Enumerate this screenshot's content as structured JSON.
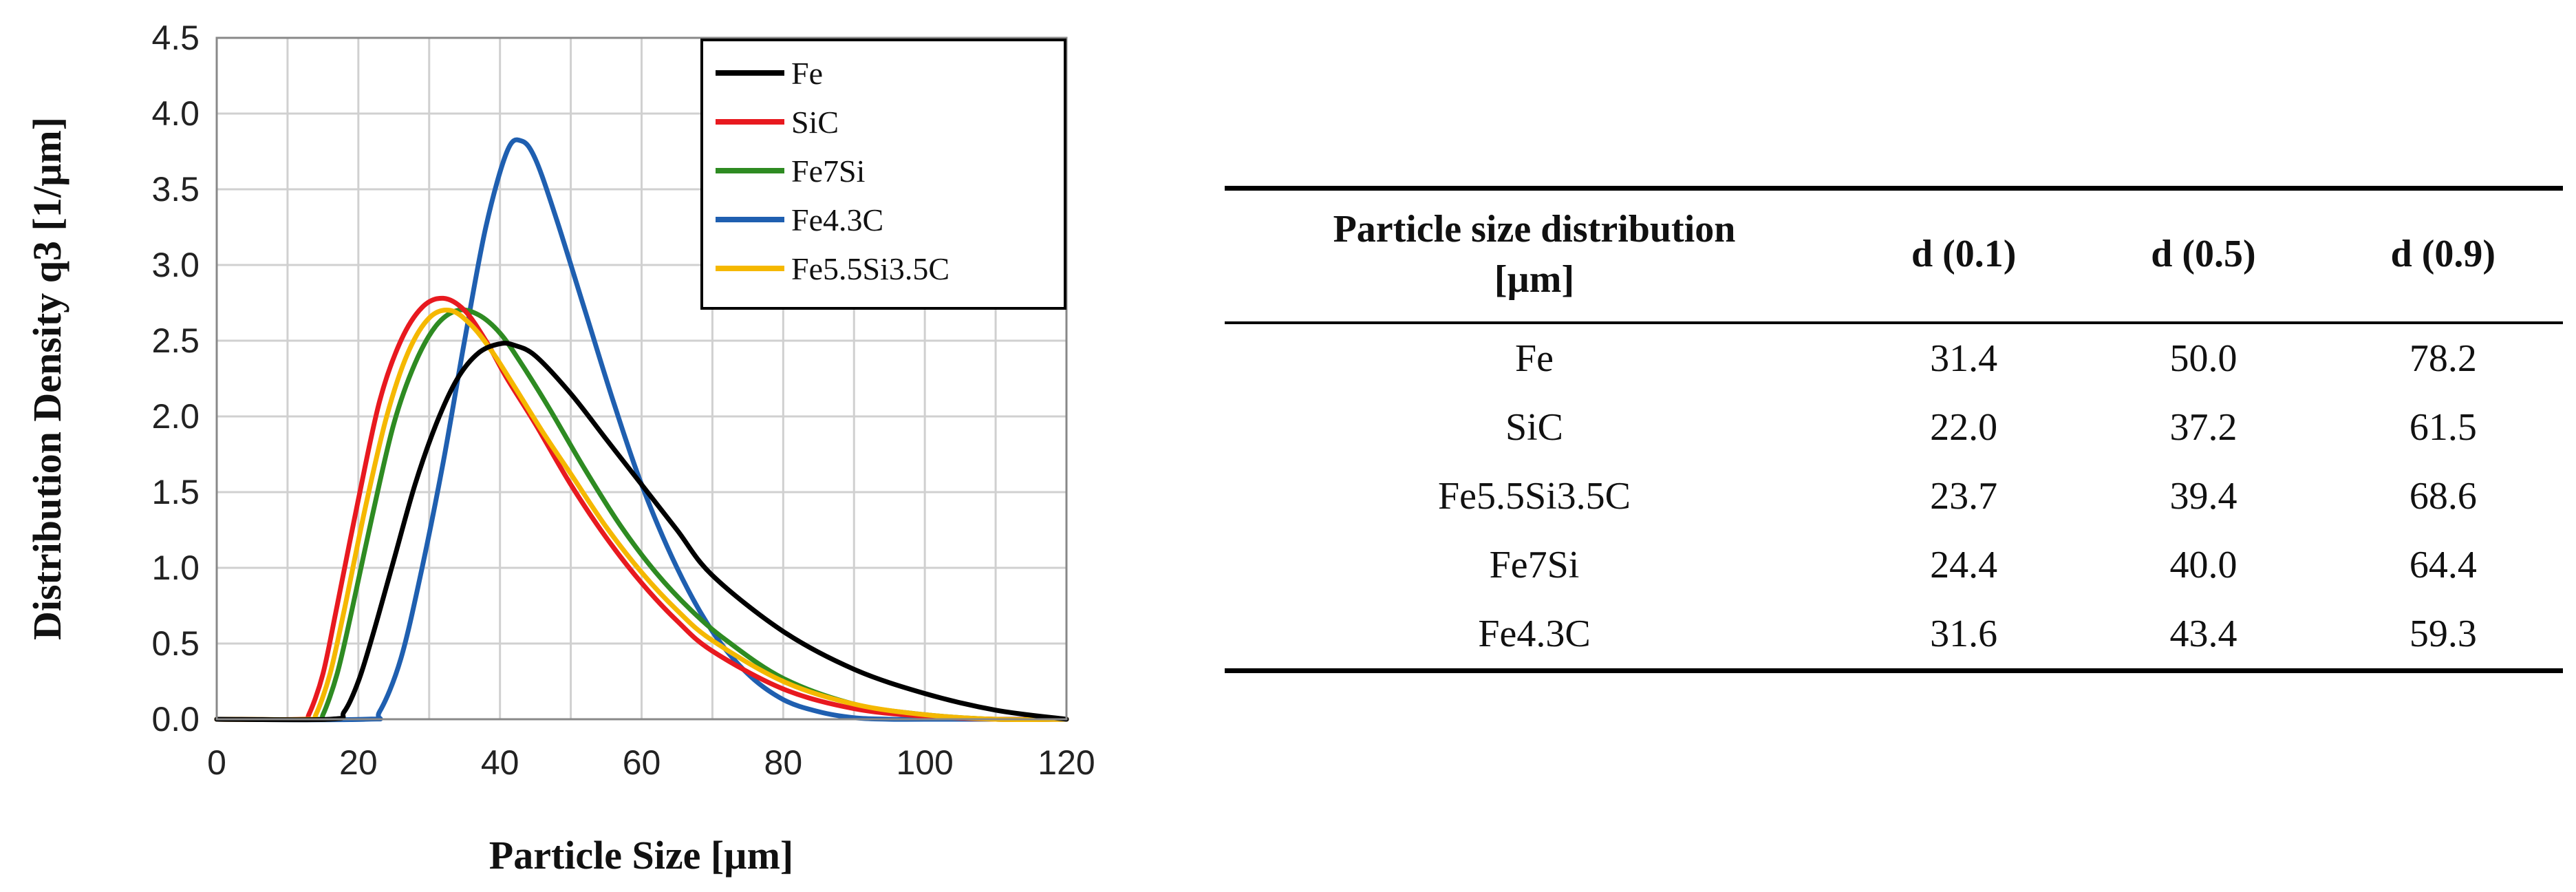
{
  "chart_data": {
    "type": "line",
    "title": "",
    "xlabel": "Particle Size [µm]",
    "ylabel": "Distribution Density q3 [1/µm]",
    "xlim": [
      0,
      120
    ],
    "ylim": [
      0,
      4.5
    ],
    "xticks": [
      "0",
      "20",
      "40",
      "60",
      "80",
      "100",
      "120"
    ],
    "yticks": [
      "0.0",
      "0.5",
      "1.0",
      "1.5",
      "2.0",
      "2.5",
      "3.0",
      "3.5",
      "4.0",
      "4.5"
    ],
    "grid": true,
    "legend_position": "top-right",
    "series": [
      {
        "name": "Fe",
        "color": "#000000",
        "x": [
          0,
          16,
          18,
          20,
          22,
          25,
          28,
          31,
          34,
          37,
          40,
          42,
          45,
          50,
          55,
          60,
          65,
          70,
          80,
          90,
          100,
          110,
          120
        ],
        "y": [
          0,
          0,
          0.05,
          0.25,
          0.55,
          1.05,
          1.55,
          1.95,
          2.25,
          2.42,
          2.48,
          2.47,
          2.4,
          2.15,
          1.85,
          1.55,
          1.25,
          0.95,
          0.58,
          0.33,
          0.17,
          0.06,
          0.0
        ]
      },
      {
        "name": "SiC",
        "color": "#e8191f",
        "x": [
          0,
          12,
          13,
          15,
          17,
          20,
          23,
          26,
          29,
          32,
          35,
          38,
          41,
          45,
          50,
          55,
          60,
          65,
          70,
          80,
          90,
          100,
          110,
          120
        ],
        "y": [
          0,
          0,
          0.03,
          0.3,
          0.75,
          1.45,
          2.1,
          2.5,
          2.72,
          2.78,
          2.7,
          2.5,
          2.25,
          1.95,
          1.55,
          1.2,
          0.9,
          0.65,
          0.45,
          0.2,
          0.07,
          0.02,
          0.0,
          0.0
        ]
      },
      {
        "name": "Fe7Si",
        "color": "#2e8b22",
        "x": [
          0,
          14,
          15,
          17,
          19,
          22,
          25,
          28,
          31,
          34,
          37,
          40,
          43,
          47,
          52,
          57,
          62,
          67,
          72,
          80,
          90,
          100,
          110,
          120
        ],
        "y": [
          0,
          0,
          0.03,
          0.3,
          0.7,
          1.35,
          1.95,
          2.35,
          2.6,
          2.7,
          2.67,
          2.55,
          2.35,
          2.05,
          1.65,
          1.28,
          0.97,
          0.72,
          0.52,
          0.27,
          0.1,
          0.03,
          0.0,
          0.0
        ]
      },
      {
        "name": "Fe4.3C",
        "color": "#1f5fb0",
        "x": [
          0,
          21,
          23,
          26,
          29,
          32,
          35,
          38,
          41,
          43,
          45,
          48,
          52,
          56,
          60,
          65,
          70,
          75,
          80,
          85,
          90,
          95,
          100,
          120
        ],
        "y": [
          0,
          0,
          0.05,
          0.4,
          1.0,
          1.7,
          2.5,
          3.25,
          3.75,
          3.82,
          3.7,
          3.3,
          2.7,
          2.1,
          1.55,
          1.0,
          0.58,
          0.3,
          0.13,
          0.05,
          0.01,
          0.0,
          0.0,
          0.0
        ]
      },
      {
        "name": "Fe5.5Si3.5C",
        "color": "#f5b800",
        "x": [
          0,
          13,
          14,
          16,
          18,
          21,
          24,
          27,
          30,
          33,
          36,
          39,
          42,
          46,
          50,
          55,
          60,
          65,
          70,
          80,
          90,
          100,
          110,
          120
        ],
        "y": [
          0,
          0,
          0.03,
          0.3,
          0.72,
          1.4,
          2.0,
          2.42,
          2.65,
          2.7,
          2.6,
          2.42,
          2.2,
          1.9,
          1.62,
          1.27,
          0.97,
          0.72,
          0.52,
          0.25,
          0.1,
          0.03,
          0.0,
          0.0
        ]
      }
    ]
  },
  "table": {
    "header": {
      "name_line1": "Particle size distribution",
      "name_line2": "[µm]",
      "d01": "d (0.1)",
      "d05": "d (0.5)",
      "d09": "d (0.9)"
    },
    "rows": [
      {
        "name": "Fe",
        "d01": "31.4",
        "d05": "50.0",
        "d09": "78.2"
      },
      {
        "name": "SiC",
        "d01": "22.0",
        "d05": "37.2",
        "d09": "61.5"
      },
      {
        "name": "Fe5.5Si3.5C",
        "d01": "23.7",
        "d05": "39.4",
        "d09": "68.6"
      },
      {
        "name": "Fe7Si",
        "d01": "24.4",
        "d05": "40.0",
        "d09": "64.4"
      },
      {
        "name": "Fe4.3C",
        "d01": "31.6",
        "d05": "43.4",
        "d09": "59.3"
      }
    ]
  }
}
